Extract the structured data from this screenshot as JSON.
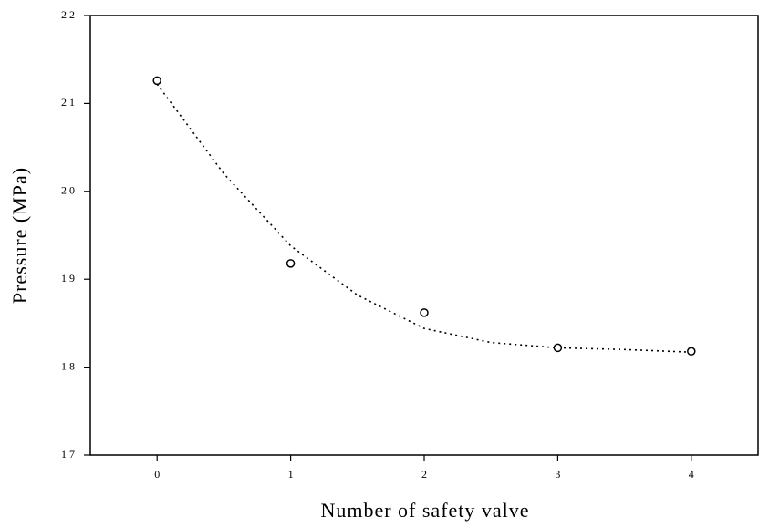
{
  "chart_data": {
    "type": "scatter",
    "xlabel": "Number of safety valve",
    "ylabel": "Pressure (MPa)",
    "xlim": [
      -0.5,
      4.5
    ],
    "xticks": [
      0,
      1,
      2,
      3,
      4
    ],
    "ylim": [
      17,
      22
    ],
    "yticks": [
      17,
      18,
      19,
      20,
      21,
      22
    ],
    "series": [
      {
        "color": "#000000",
        "marker": "circle",
        "x": [
          0,
          1,
          2,
          3,
          4
        ],
        "values": [
          21.26,
          19.18,
          18.62,
          18.22,
          18.18
        ]
      },
      {
        "color": "#000000",
        "line": "dotted",
        "x": [
          0,
          0.5,
          1,
          1.5,
          2,
          2.5,
          3,
          3.5,
          4
        ],
        "values": [
          21.22,
          20.2,
          19.38,
          18.82,
          18.44,
          18.28,
          18.22,
          18.2,
          18.17
        ]
      }
    ]
  }
}
